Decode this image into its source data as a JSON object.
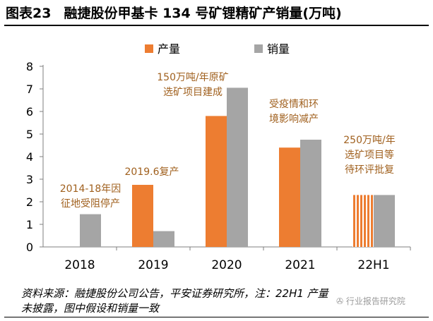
{
  "header": {
    "figure_no": "图表23",
    "title": "融捷股份甲基卡 134 号矿锂精矿产销量(万吨)"
  },
  "chart_data": {
    "type": "bar",
    "categories": [
      "2018",
      "2019",
      "2020",
      "2021",
      "22H1"
    ],
    "series": [
      {
        "name": "产量",
        "color": "#ED7D31",
        "values": [
          null,
          2.75,
          5.8,
          4.4,
          2.3
        ]
      },
      {
        "name": "销量",
        "color": "#A5A5A5",
        "values": [
          1.45,
          0.7,
          7.05,
          4.75,
          2.3
        ]
      }
    ],
    "hatched": {
      "series": "产量",
      "category": "22H1",
      "note": "striped fill (assumed value)"
    },
    "ylim": [
      0,
      8
    ],
    "yticks": [
      "0",
      "1",
      "2",
      "3",
      "4",
      "5",
      "6",
      "7",
      "8"
    ],
    "legend_position": "top-center",
    "annotation_color": "#A0601E",
    "annotations": [
      {
        "category": "2018",
        "lines": [
          "2014-18年因",
          "征地受阻停产"
        ]
      },
      {
        "category": "2019",
        "lines": [
          "2019.6复产"
        ]
      },
      {
        "category": "2020",
        "lines": [
          "150万吨/年原矿",
          "选矿项目建成"
        ]
      },
      {
        "category": "2021",
        "lines": [
          "受疫情和环",
          "境影响减产"
        ]
      },
      {
        "category": "22H1",
        "lines": [
          "250万吨/年",
          "选矿项目等",
          "待环评批复"
        ]
      }
    ]
  },
  "source": {
    "line1": "资料来源：融捷股份公司公告，平安证券研究所，注：22H1 产量",
    "line2": "未披露，图中假设和销量一致"
  },
  "watermark": {
    "text": "行业报告研究院"
  }
}
